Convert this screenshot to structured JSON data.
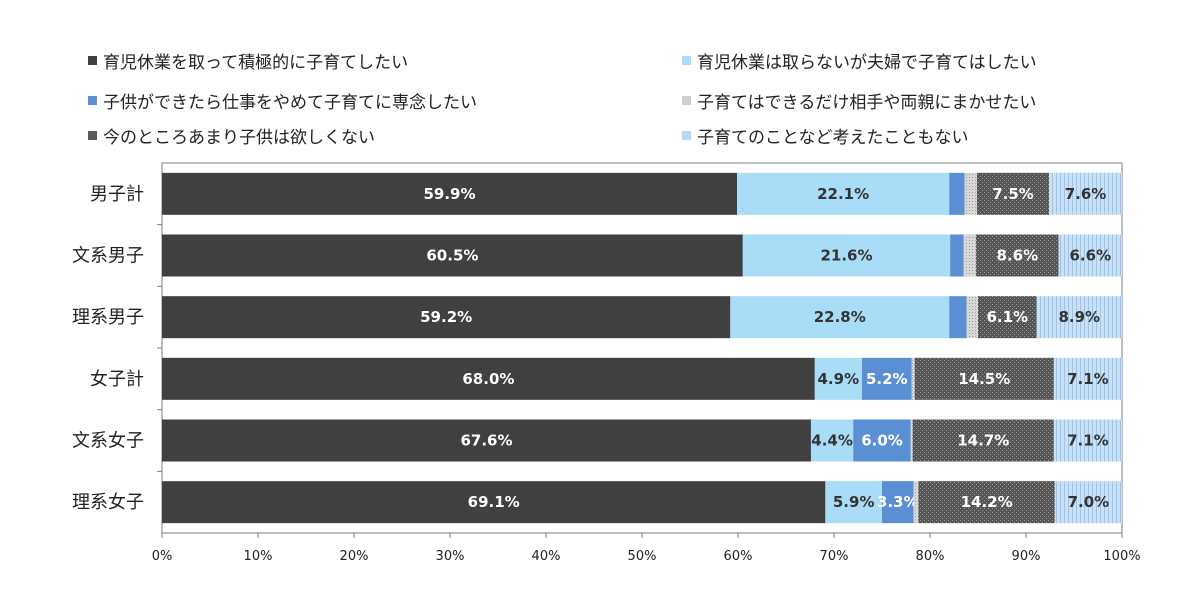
{
  "chart_data": {
    "type": "bar",
    "orientation": "horizontal",
    "stacked": "percent",
    "title": "",
    "xlabel": "",
    "ylabel": "",
    "xlim": [
      0,
      100
    ],
    "x_ticks": [
      "0%",
      "10%",
      "20%",
      "30%",
      "40%",
      "50%",
      "60%",
      "70%",
      "80%",
      "90%",
      "100%"
    ],
    "legend_position": "top",
    "categories": [
      "男子計",
      "文系男子",
      "理系男子",
      "女子計",
      "文系女子",
      "理系女子"
    ],
    "series": [
      {
        "name": "育児休業を取って積極的に子育てしたい",
        "color": "#404040",
        "values": [
          59.9,
          60.5,
          59.2,
          68.0,
          67.6,
          69.1
        ],
        "labels": [
          "59.9%",
          "60.5%",
          "59.2%",
          "68.0%",
          "67.6%",
          "69.1%"
        ]
      },
      {
        "name": "育児休業は取らないが夫婦で子育てはしたい",
        "color": "#a9dcf7",
        "values": [
          22.1,
          21.6,
          22.8,
          4.9,
          4.4,
          5.9
        ],
        "labels": [
          "22.1%",
          "21.6%",
          "22.8%",
          "4.9%",
          "4.4%",
          "5.9%"
        ]
      },
      {
        "name": "子供ができたら仕事をやめて子育てに専念したい",
        "color": "#5b8fd4",
        "values": [
          1.6,
          1.4,
          1.8,
          5.2,
          6.0,
          3.3
        ],
        "labels": [
          "",
          "",
          "",
          "5.2%",
          "6.0%",
          "3.3%"
        ]
      },
      {
        "name": "子育てはできるだけ相手や両親にまかせたい",
        "color": "#cfcfcf",
        "values": [
          1.3,
          1.3,
          1.2,
          0.3,
          0.2,
          0.5
        ],
        "labels": [
          "",
          "",
          "",
          "",
          "",
          ""
        ]
      },
      {
        "name": "今のところあまり子供は欲しくない",
        "color": "#5a5a5a",
        "values": [
          7.5,
          8.6,
          6.1,
          14.5,
          14.7,
          14.2
        ],
        "labels": [
          "7.5%",
          "8.6%",
          "6.1%",
          "14.5%",
          "14.7%",
          "14.2%"
        ]
      },
      {
        "name": "子育てのことなど考えたこともない",
        "color": "#bcd9f4",
        "values": [
          7.6,
          6.6,
          8.9,
          7.1,
          7.1,
          7.0
        ],
        "labels": [
          "7.6%",
          "6.6%",
          "8.9%",
          "7.1%",
          "7.1%",
          "7.0%"
        ]
      }
    ]
  }
}
